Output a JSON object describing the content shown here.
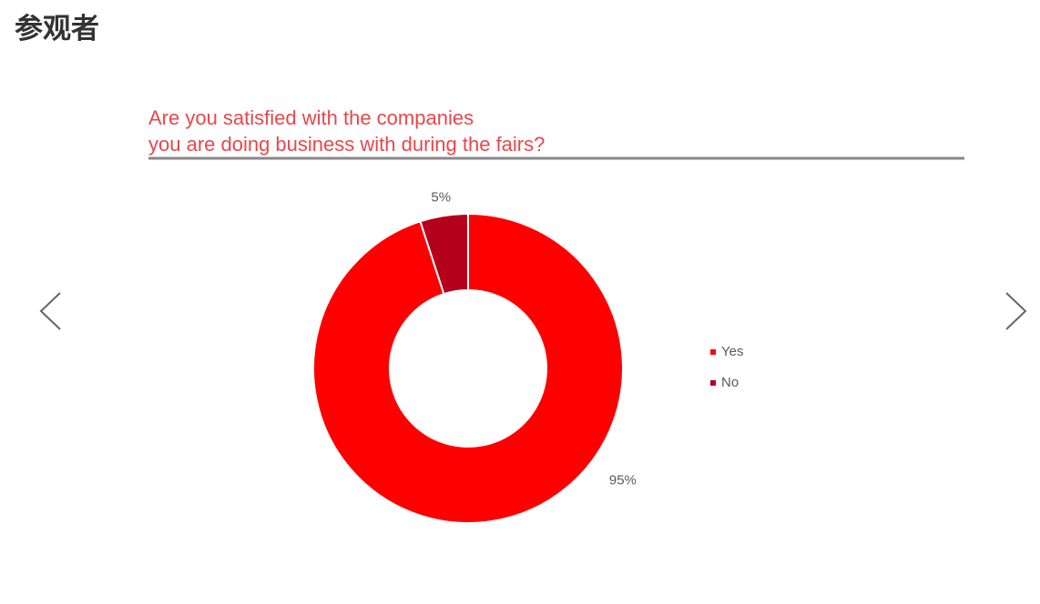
{
  "heading": "参观者",
  "chart_data": {
    "type": "donut",
    "title": [
      "Are you satisfied with the companies",
      "you are doing business with during the fairs?"
    ],
    "categories": [
      "Yes",
      "No"
    ],
    "values": [
      95,
      5
    ],
    "value_labels": [
      "95%",
      "5%"
    ],
    "colors": [
      "#ff0000",
      "#b5001c"
    ],
    "legend": "right"
  }
}
